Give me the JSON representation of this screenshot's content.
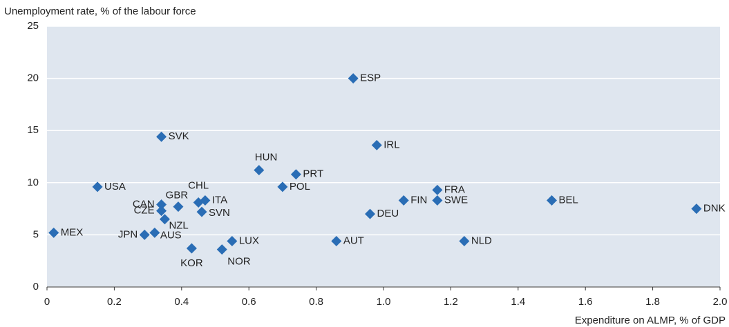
{
  "chart_data": {
    "type": "scatter",
    "ylabel": "Unemployment rate, % of the labour force",
    "xlabel": "Expenditure on ALMP, % of GDP",
    "xlim": [
      0,
      2.0
    ],
    "ylim": [
      0,
      25
    ],
    "xticks": [
      0,
      0.2,
      0.4,
      0.6,
      0.8,
      {
        "value": 1.0,
        "label": "1.0"
      },
      1.2,
      1.4,
      1.6,
      1.8,
      {
        "value": 2.0,
        "label": "2.0"
      }
    ],
    "yticks": [
      0,
      5,
      10,
      15,
      20,
      25
    ],
    "grid": true,
    "color": "#2a6db5",
    "labels": [
      "MEX",
      "USA",
      "SVK",
      "CAN",
      "CZE",
      "GBR",
      "NZL",
      "JPN",
      "AUS",
      "KOR",
      "CHL",
      "ITA",
      "SVN",
      "NOR",
      "LUX",
      "HUN",
      "POL",
      "PRT",
      "ESP",
      "IRL",
      "AUT",
      "DEU",
      "FIN",
      "FRA",
      "SWE",
      "NLD",
      "BEL",
      "DNK"
    ],
    "x": [
      0.02,
      0.15,
      0.34,
      0.34,
      0.34,
      0.39,
      0.35,
      0.29,
      0.32,
      0.43,
      0.45,
      0.47,
      0.46,
      0.52,
      0.55,
      0.63,
      0.7,
      0.74,
      0.91,
      0.98,
      0.86,
      0.96,
      1.06,
      1.16,
      1.16,
      1.24,
      1.5,
      1.93
    ],
    "y": [
      5.2,
      9.6,
      14.4,
      7.9,
      7.3,
      7.7,
      6.5,
      5.0,
      5.2,
      3.7,
      8.1,
      8.3,
      7.2,
      3.6,
      4.4,
      11.2,
      9.6,
      10.8,
      20.0,
      13.6,
      4.4,
      7.0,
      8.3,
      9.3,
      8.3,
      4.4,
      8.3,
      7.5
    ]
  }
}
